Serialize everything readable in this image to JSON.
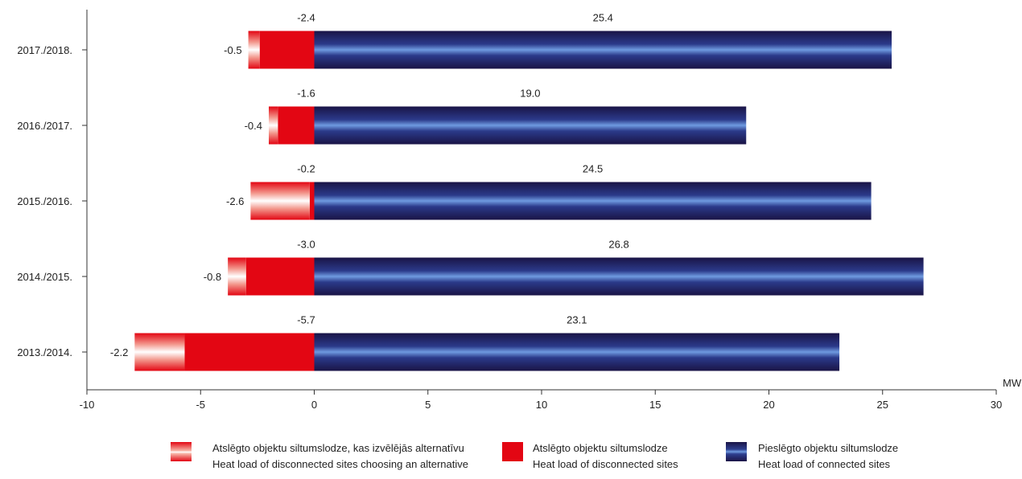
{
  "chart_data": {
    "type": "bar",
    "orientation": "horizontal",
    "stacked": true,
    "categories": [
      "2017./2018.",
      "2016./2017.",
      "2015./2016.",
      "2014./2015.",
      "2013./2014."
    ],
    "series": [
      {
        "name": "Pieslēgto objektu siltumslodze",
        "name_en": "Heat load of connected sites",
        "values": [
          25.4,
          19.0,
          24.5,
          26.8,
          23.1
        ],
        "labels": [
          "25.4",
          "19.0",
          "24.5",
          "26.8",
          "23.1"
        ],
        "color": "#262c6e"
      },
      {
        "name": "Atslēgto objektu siltumslodze",
        "name_en": "Heat load of disconnected sites",
        "values": [
          -2.4,
          -1.6,
          -0.2,
          -3.0,
          -5.7
        ],
        "labels": [
          "-2.4",
          "-1.6",
          "-0.2",
          "-3.0",
          "-5.7"
        ],
        "color": "#e30613"
      },
      {
        "name": "Atslēgto objektu siltumslodze, kas izvēlējās alternatīvu",
        "name_en": "Heat load of disconnected sites choosing an alternative",
        "values": [
          -0.5,
          -0.4,
          -2.6,
          -0.8,
          -2.2
        ],
        "labels": [
          "-0.5",
          "-0.4",
          "-2.6",
          "-0.8",
          "-2.2"
        ],
        "color": "#f7b6a8"
      }
    ],
    "xlabel": "MW",
    "xlim": [
      -10,
      30
    ],
    "xticks": [
      -10,
      -5,
      0,
      5,
      10,
      15,
      20,
      25,
      30
    ],
    "xtick_labels": [
      "-10",
      "-5",
      "0",
      "5",
      "10",
      "15",
      "20",
      "25",
      "30"
    ],
    "grid": false,
    "legend_position": "bottom"
  }
}
